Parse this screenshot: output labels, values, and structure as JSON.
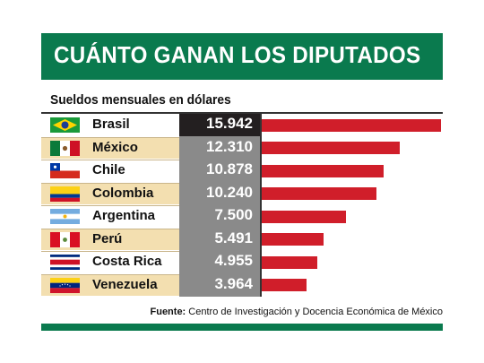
{
  "title": "CUÁNTO GANAN LOS DIPUTADOS",
  "subtitle": "Sueldos mensuales en dólares",
  "source_label": "Fuente:",
  "source_text": "Centro de Investigación y Docencia Económica de México",
  "colors": {
    "brand_green": "#0a7a4e",
    "bar_red": "#d01e2a",
    "value_bg": "#8a8a8a",
    "highlight_bg": "#231f20",
    "row_shade": "#f3dfb0"
  },
  "chart_data": {
    "type": "bar",
    "orientation": "horizontal",
    "title": "CUÁNTO GANAN LOS DIPUTADOS",
    "subtitle": "Sueldos mensuales en dólares",
    "categories": [
      "Brasil",
      "México",
      "Chile",
      "Colombia",
      "Argentina",
      "Perú",
      "Costa Rica",
      "Venezuela"
    ],
    "labels": [
      "15.942",
      "12.310",
      "10.878",
      "10.240",
      "7.500",
      "5.491",
      "4.955",
      "3.964"
    ],
    "values": [
      15942,
      12310,
      10878,
      10240,
      7500,
      5491,
      4955,
      3964
    ],
    "flags": [
      "brazil-flag-icon",
      "mexico-flag-icon",
      "chile-flag-icon",
      "colombia-flag-icon",
      "argentina-flag-icon",
      "peru-flag-icon",
      "costa-rica-flag-icon",
      "venezuela-flag-icon"
    ],
    "xlim": [
      0,
      15942
    ],
    "grid": false
  }
}
